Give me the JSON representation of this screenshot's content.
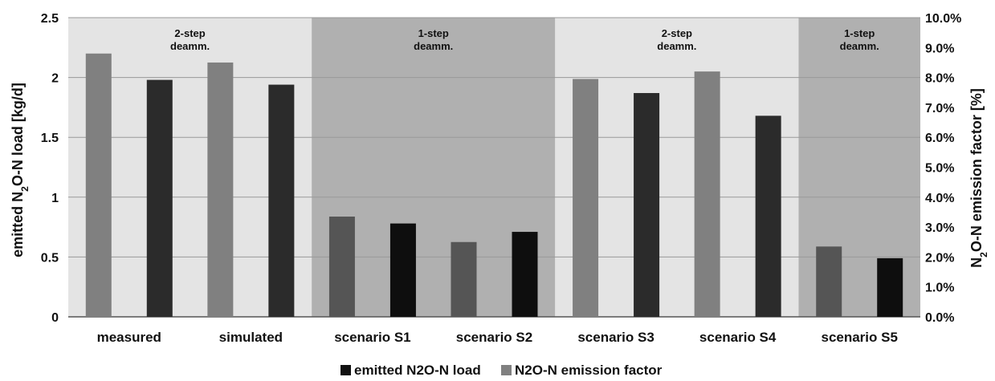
{
  "chart_data": {
    "type": "bar",
    "categories": [
      "measured",
      "simulated",
      "scenario S1",
      "scenario S2",
      "scenario S3",
      "scenario S4",
      "scenario S5"
    ],
    "y_left": {
      "label_pre": "emitted N",
      "label_sub": "2",
      "label_post": "O-N load [kg/d]",
      "ylim": [
        0,
        2.5
      ],
      "ticks": [
        "0",
        "0.5",
        "1",
        "1.5",
        "2",
        "2.5"
      ],
      "tick_values": [
        0,
        0.5,
        1,
        1.5,
        2,
        2.5
      ]
    },
    "y_right": {
      "label_pre": "N",
      "label_sub": "2",
      "label_post": "O-N emission factor [%]",
      "ylim": [
        0,
        10
      ],
      "ticks": [
        "0.0%",
        "1.0%",
        "2.0%",
        "3.0%",
        "4.0%",
        "5.0%",
        "6.0%",
        "7.0%",
        "8.0%",
        "9.0%",
        "10.0%"
      ],
      "tick_values": [
        0,
        1,
        2,
        3,
        4,
        5,
        6,
        7,
        8,
        9,
        10
      ]
    },
    "series": [
      {
        "name": "N2O-N emission factor",
        "axis": "right",
        "values": [
          8.8,
          8.5,
          3.35,
          2.5,
          7.95,
          8.2,
          2.35
        ]
      },
      {
        "name": "emitted N2O-N load",
        "axis": "left",
        "values": [
          1.98,
          1.94,
          0.78,
          0.71,
          1.87,
          1.68,
          0.49
        ]
      }
    ],
    "regions": [
      {
        "line1": "2-step",
        "line2": "deamm.",
        "from": 0,
        "to": 1,
        "shade": "light"
      },
      {
        "line1": "1-step",
        "line2": "deamm.",
        "from": 2,
        "to": 3,
        "shade": "dark"
      },
      {
        "line1": "2-step",
        "line2": "deamm.",
        "from": 4,
        "to": 5,
        "shade": "light"
      },
      {
        "line1": "1-step",
        "line2": "deamm.",
        "from": 6,
        "to": 6,
        "shade": "dark"
      }
    ],
    "grid": true,
    "legend": "bottom-center"
  },
  "colors": {
    "region_light": "#e4e4e4",
    "region_dark": "#b0b0b0",
    "gridline": "#999999",
    "factor_on_light": "#808080",
    "factor_on_dark": "#555555",
    "load_on_light": "#2b2b2b",
    "load_on_dark": "#0e0e0e",
    "legend_load": "#111111",
    "legend_factor": "#808080"
  }
}
